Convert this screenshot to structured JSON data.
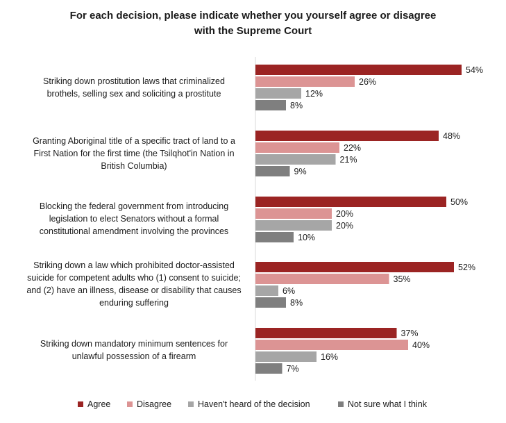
{
  "chart_data": {
    "type": "bar",
    "orientation": "horizontal",
    "title": [
      "For each decision, please indicate whether you yourself agree or disagree",
      "with the Supreme Court"
    ],
    "categories": [
      [
        "Striking down prostitution laws that criminalized",
        "brothels, selling sex and soliciting a prostitute"
      ],
      [
        "Granting Aboriginal title of a specific tract of land to a",
        "First Nation for the first time (the Tsilqhot'in Nation in",
        "British Columbia)"
      ],
      [
        "Blocking the federal government from introducing",
        "legislation to elect Senators without a formal",
        "constitutional amendment involving the provinces"
      ],
      [
        "Striking down a law which prohibited doctor-assisted",
        "suicide for competent adults who (1) consent to suicide;",
        "and (2) have an illness, disease or disability that causes",
        "enduring suffering"
      ],
      [
        "Striking down mandatory minimum sentences for",
        "unlawful possession of a firearm"
      ]
    ],
    "series": [
      {
        "name": "Agree",
        "color": "#9b2423",
        "values": [
          54,
          48,
          50,
          52,
          37
        ]
      },
      {
        "name": "Disagree",
        "color": "#dc9494",
        "values": [
          26,
          22,
          20,
          35,
          40
        ]
      },
      {
        "name": "Haven't heard of the decision",
        "color": "#a6a6a6",
        "values": [
          12,
          21,
          20,
          6,
          16
        ]
      },
      {
        "name": "Not sure what I think",
        "color": "#7f7f7f",
        "values": [
          8,
          9,
          10,
          8,
          7
        ]
      }
    ],
    "value_suffix": "%",
    "xlim": [
      0,
      60
    ],
    "legend_position": "bottom",
    "grid": false
  }
}
